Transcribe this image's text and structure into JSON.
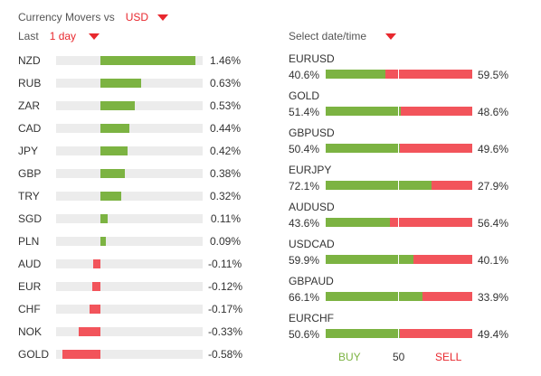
{
  "header": {
    "title": "Currency Movers vs",
    "base_currency": "USD",
    "period_label": "Last",
    "period_value": "1 day",
    "date_label": "Select date/time"
  },
  "movers": [
    {
      "code": "NZD",
      "value": 1.46,
      "label": "1.46%"
    },
    {
      "code": "RUB",
      "value": 0.63,
      "label": "0.63%"
    },
    {
      "code": "ZAR",
      "value": 0.53,
      "label": "0.53%"
    },
    {
      "code": "CAD",
      "value": 0.44,
      "label": "0.44%"
    },
    {
      "code": "JPY",
      "value": 0.42,
      "label": "0.42%"
    },
    {
      "code": "GBP",
      "value": 0.38,
      "label": "0.38%"
    },
    {
      "code": "TRY",
      "value": 0.32,
      "label": "0.32%"
    },
    {
      "code": "SGD",
      "value": 0.11,
      "label": "0.11%"
    },
    {
      "code": "PLN",
      "value": 0.09,
      "label": "0.09%"
    },
    {
      "code": "AUD",
      "value": -0.11,
      "label": "-0.11%"
    },
    {
      "code": "EUR",
      "value": -0.12,
      "label": "-0.12%"
    },
    {
      "code": "CHF",
      "value": -0.17,
      "label": "-0.17%"
    },
    {
      "code": "NOK",
      "value": -0.33,
      "label": "-0.33%"
    },
    {
      "code": "GOLD",
      "value": -0.58,
      "label": "-0.58%"
    }
  ],
  "sentiment": [
    {
      "pair": "EURUSD",
      "buy": 40.6,
      "sell": 59.5,
      "buy_label": "40.6%",
      "sell_label": "59.5%"
    },
    {
      "pair": "GOLD",
      "buy": 51.4,
      "sell": 48.6,
      "buy_label": "51.4%",
      "sell_label": "48.6%"
    },
    {
      "pair": "GBPUSD",
      "buy": 50.4,
      "sell": 49.6,
      "buy_label": "50.4%",
      "sell_label": "49.6%"
    },
    {
      "pair": "EURJPY",
      "buy": 72.1,
      "sell": 27.9,
      "buy_label": "72.1%",
      "sell_label": "27.9%"
    },
    {
      "pair": "AUDUSD",
      "buy": 43.6,
      "sell": 56.4,
      "buy_label": "43.6%",
      "sell_label": "56.4%"
    },
    {
      "pair": "USDCAD",
      "buy": 59.9,
      "sell": 40.1,
      "buy_label": "59.9%",
      "sell_label": "40.1%"
    },
    {
      "pair": "GBPAUD",
      "buy": 66.1,
      "sell": 33.9,
      "buy_label": "66.1%",
      "sell_label": "33.9%"
    },
    {
      "pair": "EURCHF",
      "buy": 50.6,
      "sell": 49.4,
      "buy_label": "50.6%",
      "sell_label": "49.4%"
    }
  ],
  "legend": {
    "buy": "BUY",
    "mid": "50",
    "sell": "SELL"
  },
  "colors": {
    "accent": "#e8282e",
    "positive": "#7cb342",
    "negative": "#f2545b",
    "track": "#ececec"
  }
}
